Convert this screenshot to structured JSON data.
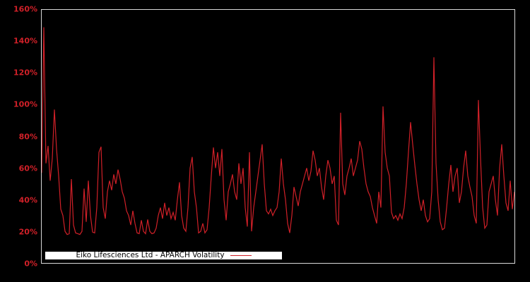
{
  "colors": {
    "background": "#000000",
    "line": "#d02028",
    "tick_label": "#d02028",
    "plot_border": "#d9d9d9",
    "legend_background": "#ffffff",
    "legend_border": "#000000",
    "legend_text": "#000000"
  },
  "legend": {
    "label": "Eiko Lifesciences Ltd - APARCH Volatility"
  },
  "chart_data": {
    "type": "line",
    "title": "",
    "xlabel": "",
    "ylabel": "",
    "ylim": [
      0,
      160
    ],
    "grid": false,
    "legend_position": "bottom-left-inside",
    "y_ticks": [
      {
        "value": 0,
        "label": "0%"
      },
      {
        "value": 20,
        "label": "20%"
      },
      {
        "value": 40,
        "label": "40%"
      },
      {
        "value": 60,
        "label": "60%"
      },
      {
        "value": 80,
        "label": "80%"
      },
      {
        "value": 100,
        "label": "100%"
      },
      {
        "value": 120,
        "label": "120%"
      },
      {
        "value": 140,
        "label": "140%"
      },
      {
        "value": 160,
        "label": "160%"
      }
    ],
    "x_ticks": [],
    "series": [
      {
        "name": "Eiko Lifesciences Ltd - APARCH Volatility",
        "unit": "percent",
        "values": [
          57,
          149,
          63,
          74,
          52,
          66,
          97,
          72,
          55,
          34,
          30,
          20,
          18,
          18.5,
          53,
          24,
          19,
          18.5,
          18,
          20,
          47,
          26,
          52,
          30,
          19.5,
          19,
          35,
          70,
          73.5,
          35,
          28,
          45,
          52,
          46,
          56,
          50,
          59,
          53,
          45,
          41,
          33,
          30,
          24,
          33,
          25,
          19,
          18.5,
          27,
          20,
          18.5,
          27.5,
          20,
          18.5,
          19,
          22,
          30,
          35,
          28,
          38,
          30,
          35,
          28,
          32,
          27,
          40,
          51,
          30,
          22,
          20,
          35,
          60,
          67,
          45,
          35,
          19,
          20,
          25,
          19,
          21,
          35,
          55,
          73,
          60,
          70,
          55,
          72,
          40,
          27,
          45,
          50,
          56,
          45,
          40,
          63,
          50,
          60,
          35,
          23,
          70,
          20,
          35,
          45,
          55,
          65,
          75,
          50,
          33,
          31,
          34,
          30,
          33,
          35,
          45,
          66,
          50,
          40,
          25,
          19,
          30,
          48,
          42,
          36,
          45,
          50,
          55,
          60,
          52,
          58,
          71,
          65,
          55,
          60,
          48,
          40,
          55,
          65,
          60,
          50,
          55,
          27,
          24,
          95,
          50,
          43,
          55,
          60,
          66,
          55,
          60,
          65,
          77,
          72,
          60,
          50,
          45,
          42,
          35,
          30,
          25,
          45,
          35,
          99,
          70,
          60,
          55,
          32,
          28,
          30,
          27,
          31,
          28,
          35,
          50,
          70,
          89,
          75,
          62,
          50,
          40,
          33,
          40,
          30,
          26,
          28,
          45,
          130,
          63,
          40,
          26,
          21,
          22,
          35,
          50,
          62,
          45,
          55,
          60,
          38,
          45,
          60,
          71,
          55,
          48,
          42,
          30,
          25,
          103,
          66,
          35,
          22,
          24,
          45,
          50,
          55,
          40,
          30,
          60,
          75,
          55,
          38,
          33,
          52,
          34,
          45
        ]
      }
    ]
  }
}
